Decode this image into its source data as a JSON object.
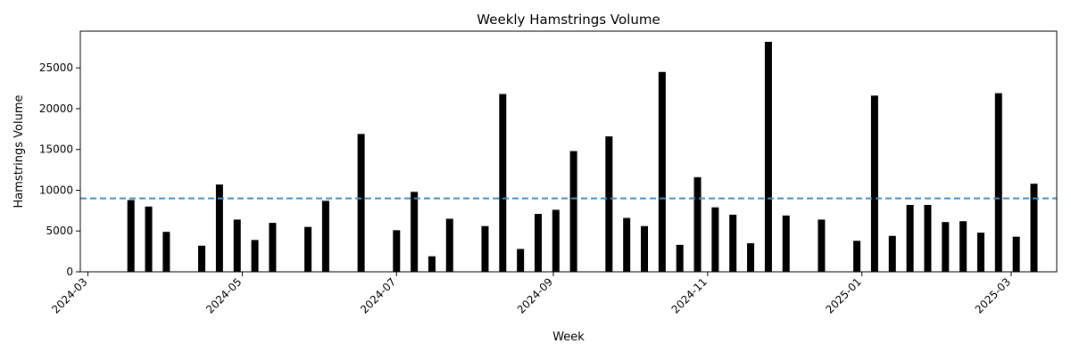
{
  "chart_data": {
    "type": "bar",
    "title": "Weekly Hamstrings Volume",
    "xlabel": "Week",
    "ylabel": "Hamstrings Volume",
    "x_axis": "date",
    "xlim": [
      "2024-02-27",
      "2025-03-19"
    ],
    "ylim": [
      0,
      29500
    ],
    "xticks": [
      "2024-03",
      "2024-05",
      "2024-07",
      "2024-09",
      "2024-11",
      "2025-01",
      "2025-03"
    ],
    "xtick_dates": [
      "2024-03-01",
      "2024-05-01",
      "2024-07-01",
      "2024-09-01",
      "2024-11-01",
      "2025-01-01",
      "2025-03-01"
    ],
    "yticks": [
      0,
      5000,
      10000,
      15000,
      20000,
      25000
    ],
    "grid": false,
    "bar_color": "#000000",
    "reference_line": {
      "value": 9000,
      "color": "#3a8fd0",
      "style": "dashed"
    },
    "series": [
      {
        "x": [
          "2024-03-18",
          "2024-03-25",
          "2024-04-01",
          "2024-04-15",
          "2024-04-22",
          "2024-04-29",
          "2024-05-06",
          "2024-05-13",
          "2024-05-27",
          "2024-06-03",
          "2024-06-17",
          "2024-07-01",
          "2024-07-08",
          "2024-07-15",
          "2024-07-22",
          "2024-08-05",
          "2024-08-12",
          "2024-08-19",
          "2024-08-26",
          "2024-09-02",
          "2024-09-09",
          "2024-09-23",
          "2024-09-30",
          "2024-10-07",
          "2024-10-14",
          "2024-10-21",
          "2024-10-28",
          "2024-11-04",
          "2024-11-11",
          "2024-11-18",
          "2024-11-25",
          "2024-12-02",
          "2024-12-16",
          "2024-12-30",
          "2025-01-06",
          "2025-01-13",
          "2025-01-20",
          "2025-01-27",
          "2025-02-03",
          "2025-02-10",
          "2025-02-17",
          "2025-02-24",
          "2025-03-03",
          "2025-03-10"
        ],
        "values": [
          8800,
          8000,
          4900,
          3200,
          10700,
          6400,
          3900,
          6000,
          5500,
          8700,
          16900,
          5100,
          9800,
          1900,
          6500,
          5600,
          21800,
          2800,
          7100,
          7600,
          14800,
          16600,
          6600,
          5600,
          24500,
          3300,
          11600,
          7900,
          7000,
          3500,
          28200,
          6900,
          6400,
          3800,
          21600,
          4400,
          8200,
          8200,
          6100,
          6200,
          4800,
          21900,
          4300,
          10800
        ]
      }
    ]
  }
}
